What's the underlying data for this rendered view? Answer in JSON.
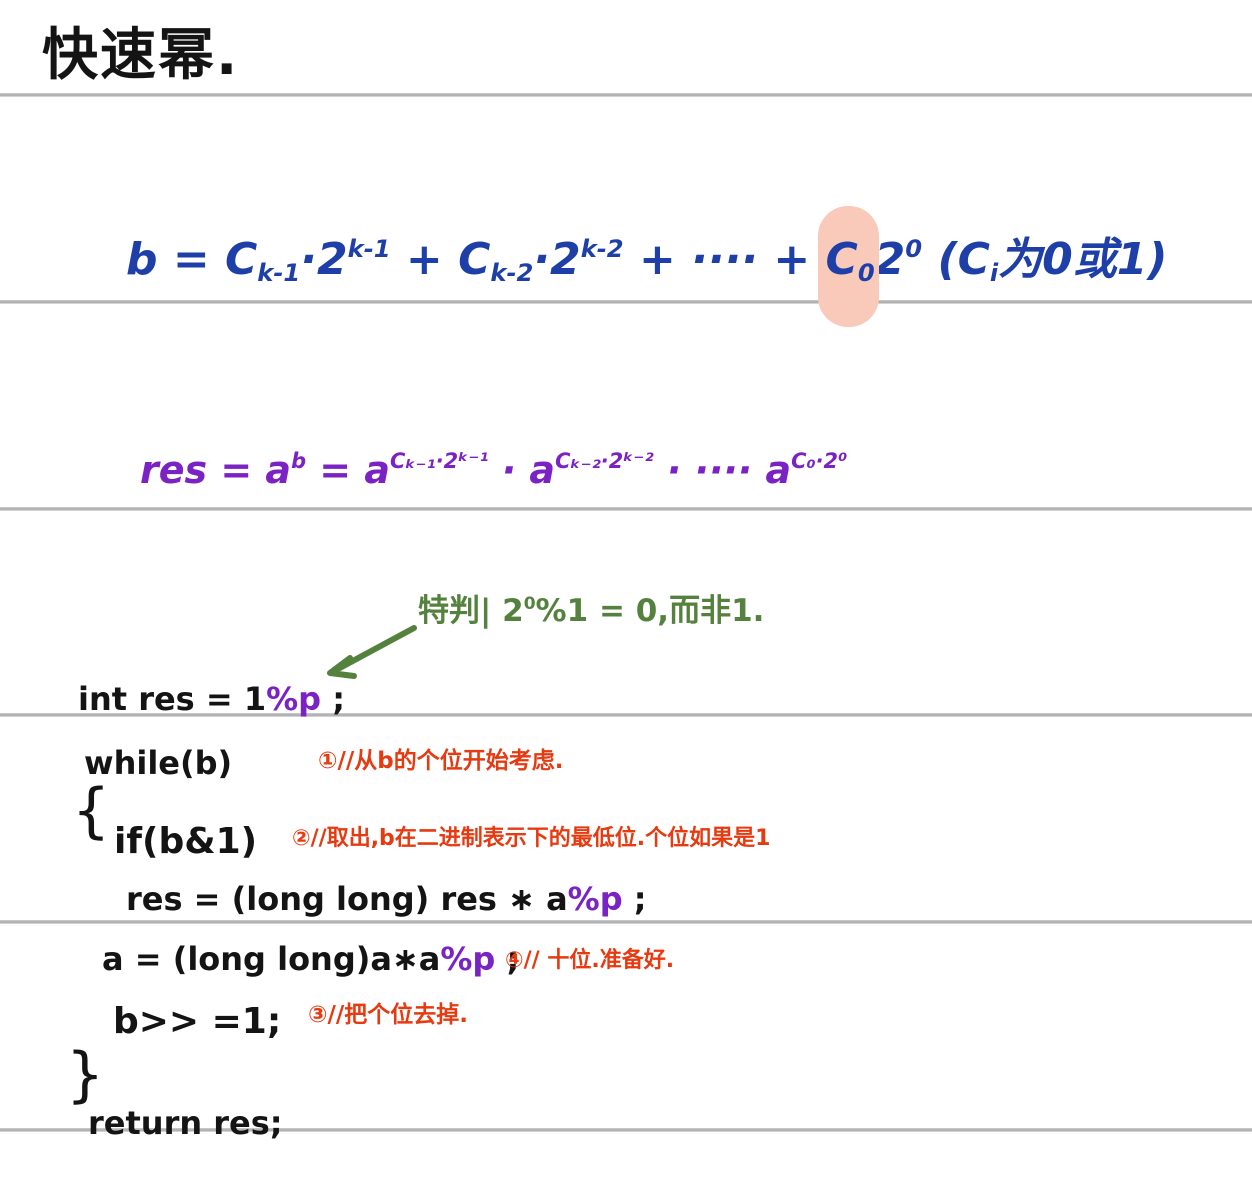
{
  "page": {
    "title": "快速幂.",
    "ink_colors": {
      "black": "#141414",
      "blue": "#1e3fa8",
      "purple": "#7b22c4",
      "green": "#55813f",
      "red": "#e63a11",
      "highlight": "#f9c9ba",
      "rule_gray": "#a8a8a8"
    }
  },
  "formula_binary": {
    "description": "binary expansion of exponent b, written in blue ink, C0 highlighted",
    "tokens": [
      {
        "t": "b = C"
      },
      {
        "t": "k-1",
        "s": "sub"
      },
      {
        "t": "·2"
      },
      {
        "t": "k-1",
        "s": "sup"
      },
      {
        "t": " + C"
      },
      {
        "t": "k-2",
        "s": "sub"
      },
      {
        "t": "·2"
      },
      {
        "t": "k-2",
        "s": "sup"
      },
      {
        "t": " + ···· + "
      },
      {
        "t": "C",
        "hl": true
      },
      {
        "t": "0",
        "s": "sub",
        "hl": true
      },
      {
        "t": "2"
      },
      {
        "t": "0",
        "s": "sup"
      },
      {
        "t": "   (C"
      },
      {
        "t": "i",
        "s": "sub"
      },
      {
        "t": "为0或1)"
      }
    ]
  },
  "formula_product": {
    "description": "res = a^b expanded as product of powers, purple ink",
    "tokens": [
      {
        "t": "res = a"
      },
      {
        "t": "b",
        "s": "sup"
      },
      {
        "t": " = a"
      },
      {
        "t": "Cₖ₋₁·2ᵏ⁻¹",
        "s": "sup"
      },
      {
        "t": " · a"
      },
      {
        "t": "Cₖ₋₂·2ᵏ⁻²",
        "s": "sup"
      },
      {
        "t": " · ···· a"
      },
      {
        "t": "C₀·2⁰",
        "s": "sup"
      }
    ]
  },
  "green_note": {
    "tokens": [
      {
        "t": "特判| 2"
      },
      {
        "t": "0",
        "s": "sup"
      },
      {
        "t": "%1 = 0,而非1."
      }
    ]
  },
  "code": {
    "line_int": {
      "tokens": [
        {
          "t": "int  res = 1"
        },
        {
          "t": "%p",
          "c": "purple"
        },
        {
          "t": " ;"
        }
      ]
    },
    "line_while": {
      "tokens": [
        {
          "t": "while(b)"
        }
      ]
    },
    "brace_open": "{",
    "line_if": {
      "tokens": [
        {
          "t": "if(b&1)"
        }
      ]
    },
    "line_res": {
      "tokens": [
        {
          "t": "res = (long  long) res  ∗ a"
        },
        {
          "t": "%p",
          "c": "purple"
        },
        {
          "t": "  ;"
        }
      ]
    },
    "line_a": {
      "tokens": [
        {
          "t": "a = (long  long)a∗a"
        },
        {
          "t": "%p",
          "c": "purple"
        },
        {
          "t": " ;"
        }
      ]
    },
    "line_shift": {
      "tokens": [
        {
          "t": "b>> =1;"
        }
      ]
    },
    "brace_close": "}",
    "line_return": {
      "tokens": [
        {
          "t": "return  res;"
        }
      ]
    }
  },
  "red_notes": {
    "n1": "①//从b的个位开始考虑.",
    "n2": "②//取出,b在二进制表示下的最低位.个位如果是1",
    "n4": "④// 十位.准备好.",
    "n3": "③//把个位去掉."
  }
}
